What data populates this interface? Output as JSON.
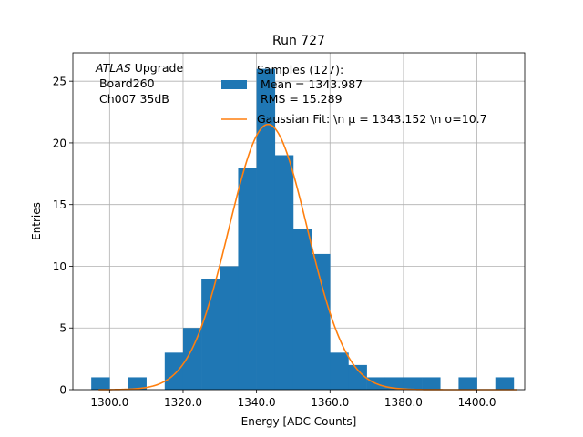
{
  "chart_data": {
    "type": "bar",
    "title": "Run 727",
    "xlabel": "Energy [ADC Counts]",
    "ylabel": "Entries",
    "xlim": [
      1290,
      1413
    ],
    "ylim": [
      0,
      27.3
    ],
    "xticks": [
      1300,
      1320,
      1340,
      1360,
      1380,
      1400
    ],
    "xtick_labels": [
      "1300.0",
      "1320.0",
      "1340.0",
      "1360.0",
      "1380.0",
      "1400.0"
    ],
    "yticks": [
      0,
      5,
      10,
      15,
      20,
      25
    ],
    "ytick_labels": [
      "0",
      "5",
      "10",
      "15",
      "20",
      "25"
    ],
    "grid": true,
    "bin_width": 5,
    "bins_left_edges": [
      1295,
      1300,
      1305,
      1310,
      1315,
      1320,
      1325,
      1330,
      1335,
      1340,
      1345,
      1350,
      1355,
      1360,
      1365,
      1370,
      1375,
      1380,
      1385,
      1390,
      1395,
      1400,
      1405
    ],
    "counts": [
      1,
      0,
      1,
      0,
      3,
      5,
      9,
      10,
      18,
      26,
      19,
      13,
      11,
      3,
      2,
      1,
      1,
      1,
      1,
      0,
      1,
      0,
      1
    ],
    "bar_color": "#1f77b4",
    "fit": {
      "mu": 1343.152,
      "sigma": 10.7,
      "amplitude": 21.5,
      "color": "#ff7f0e",
      "x_range": [
        1297,
        1411
      ]
    },
    "annotation_lines": [
      "ATLAS Upgrade",
      " Board260",
      " Ch007 35dB"
    ],
    "annotation_italic_word": "ATLAS",
    "annotation_suffix": " Upgrade",
    "legend": {
      "placement": "top-center",
      "entries": [
        {
          "kind": "patch",
          "lines": [
            "Samples (127):",
            " Mean = 1343.987",
            " RMS = 15.289"
          ]
        },
        {
          "kind": "line",
          "lines": [
            "Gaussian Fit: \\n μ = 1343.152 \\n σ=10.7"
          ]
        }
      ]
    }
  }
}
